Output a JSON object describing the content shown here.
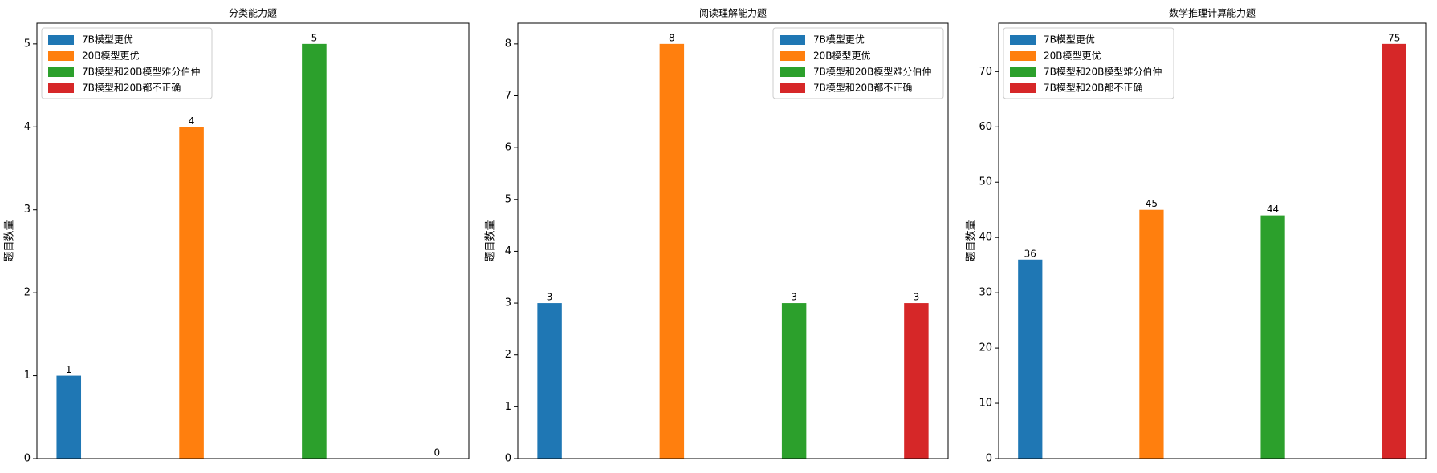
{
  "chart_data": [
    {
      "type": "bar",
      "title": "分类能力题",
      "ylabel": "题目数量",
      "legend": "upper left",
      "series": [
        {
          "name": "7B模型更优",
          "color": "#1f77b4",
          "values": [
            1
          ]
        },
        {
          "name": "20B模型更优",
          "color": "#ff7f0e",
          "values": [
            4
          ]
        },
        {
          "name": "7B模型和20B模型难分伯仲",
          "color": "#2ca02c",
          "values": [
            5
          ]
        },
        {
          "name": "7B模型和20B都不正确",
          "color": "#d62728",
          "values": [
            0
          ]
        }
      ],
      "ylim": [
        0,
        5.25
      ],
      "yticks": [
        0,
        1,
        2,
        3,
        4,
        5
      ]
    },
    {
      "type": "bar",
      "title": "阅读理解能力题",
      "ylabel": "题目数量",
      "legend": "upper right",
      "series": [
        {
          "name": "7B模型更优",
          "color": "#1f77b4",
          "values": [
            3
          ]
        },
        {
          "name": "20B模型更优",
          "color": "#ff7f0e",
          "values": [
            8
          ]
        },
        {
          "name": "7B模型和20B模型难分伯仲",
          "color": "#2ca02c",
          "values": [
            3
          ]
        },
        {
          "name": "7B模型和20B都不正确",
          "color": "#d62728",
          "values": [
            3
          ]
        }
      ],
      "ylim": [
        0,
        8.4
      ],
      "yticks": [
        0,
        1,
        2,
        3,
        4,
        5,
        6,
        7,
        8
      ]
    },
    {
      "type": "bar",
      "title": "数学推理计算能力题",
      "ylabel": "题目数量",
      "legend": "upper left",
      "series": [
        {
          "name": "7B模型更优",
          "color": "#1f77b4",
          "values": [
            36
          ]
        },
        {
          "name": "20B模型更优",
          "color": "#ff7f0e",
          "values": [
            45
          ]
        },
        {
          "name": "7B模型和20B模型难分伯仲",
          "color": "#2ca02c",
          "values": [
            44
          ]
        },
        {
          "name": "7B模型和20B都不正确",
          "color": "#d62728",
          "values": [
            75
          ]
        }
      ],
      "ylim": [
        0,
        78.75
      ],
      "yticks": [
        0,
        10,
        20,
        30,
        40,
        50,
        60,
        70
      ]
    }
  ]
}
